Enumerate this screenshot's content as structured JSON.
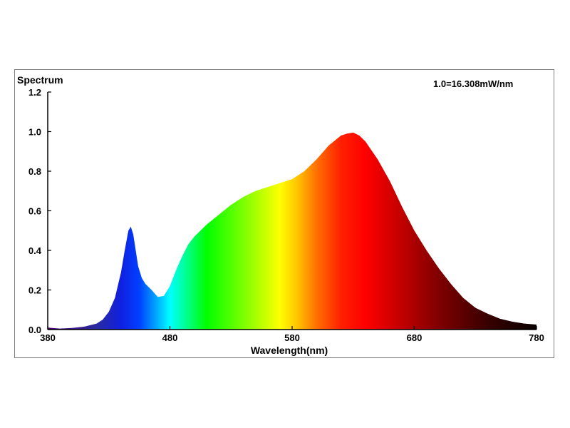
{
  "chart_data": {
    "type": "area",
    "title": "",
    "ylabel": "Spectrum",
    "xlabel": "Wavelength(nm)",
    "annotation": "1.0=16.308mW/nm",
    "xlim": [
      380,
      780
    ],
    "ylim": [
      0.0,
      1.2
    ],
    "x_ticks": [
      380,
      480,
      580,
      680,
      780
    ],
    "y_ticks": [
      "0.0",
      "0.2",
      "0.4",
      "0.6",
      "0.8",
      "1.0",
      "1.2"
    ],
    "fill": "visible-spectrum gradient (violet/blue → cyan → green → yellow → orange → red → dark red/black)",
    "series": [
      {
        "x": [
          380,
          390,
          400,
          410,
          420,
          425,
          430,
          435,
          440,
          443,
          446,
          448,
          450,
          452,
          454,
          457,
          460,
          465,
          470,
          475,
          480,
          485,
          490,
          495,
          500,
          510,
          520,
          530,
          540,
          550,
          560,
          570,
          580,
          590,
          600,
          610,
          620,
          625,
          630,
          635,
          640,
          650,
          660,
          670,
          680,
          690,
          700,
          710,
          720,
          730,
          740,
          750,
          760,
          770,
          780
        ],
        "y": [
          0.01,
          0.005,
          0.008,
          0.015,
          0.03,
          0.05,
          0.09,
          0.16,
          0.29,
          0.4,
          0.5,
          0.52,
          0.48,
          0.4,
          0.32,
          0.26,
          0.23,
          0.2,
          0.165,
          0.17,
          0.22,
          0.3,
          0.37,
          0.43,
          0.47,
          0.53,
          0.58,
          0.63,
          0.67,
          0.7,
          0.72,
          0.74,
          0.76,
          0.8,
          0.86,
          0.93,
          0.98,
          0.99,
          0.995,
          0.98,
          0.95,
          0.86,
          0.75,
          0.62,
          0.5,
          0.4,
          0.31,
          0.23,
          0.16,
          0.11,
          0.08,
          0.055,
          0.04,
          0.03,
          0.025
        ]
      }
    ]
  }
}
